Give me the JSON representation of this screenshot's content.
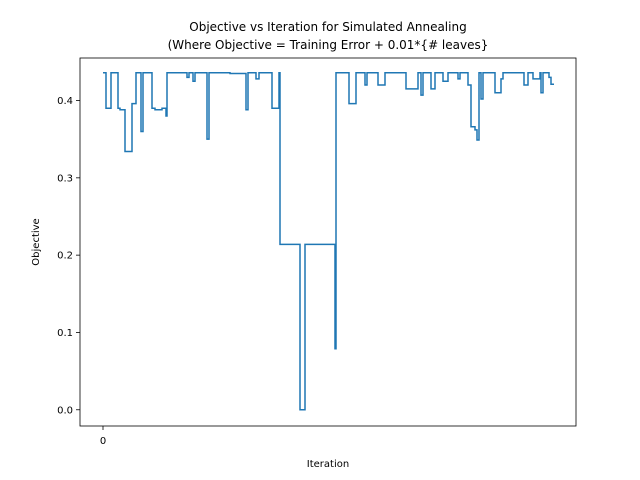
{
  "chart_data": {
    "type": "line",
    "title": [
      "Objective vs Iteration for Simulated Annealing",
      "(Where Objective = Training Error + 0.01*{# leaves}"
    ],
    "x_label": "Iteration",
    "y_label": "Objective",
    "drawstyle": "steps-post",
    "series": [
      {
        "name": "Objective",
        "color": "#1f77b4",
        "x": [
          0,
          3,
          8,
          15,
          17,
          22,
          29,
          33,
          38,
          40,
          49,
          52,
          59,
          63,
          64,
          84,
          86,
          90,
          92,
          104,
          106,
          127,
          143,
          145,
          153,
          156,
          169,
          176,
          177,
          197,
          202,
          232,
          233,
          246,
          253,
          262,
          264,
          275,
          282,
          303,
          315,
          318,
          320,
          328,
          332,
          340,
          345,
          355,
          357,
          365,
          368,
          372,
          374,
          376,
          378,
          380,
          392,
          398,
          400,
          421,
          425,
          430,
          437,
          438,
          440,
          446,
          448,
          451
        ],
        "values": [
          0.436,
          0.39,
          0.436,
          0.39,
          0.388,
          0.334,
          0.396,
          0.436,
          0.36,
          0.436,
          0.39,
          0.388,
          0.39,
          0.38,
          0.436,
          0.43,
          0.436,
          0.425,
          0.436,
          0.35,
          0.436,
          0.435,
          0.388,
          0.436,
          0.428,
          0.436,
          0.39,
          0.436,
          0.214,
          0.0,
          0.214,
          0.079,
          0.436,
          0.396,
          0.436,
          0.42,
          0.436,
          0.42,
          0.436,
          0.415,
          0.436,
          0.407,
          0.436,
          0.415,
          0.436,
          0.425,
          0.436,
          0.428,
          0.436,
          0.42,
          0.366,
          0.362,
          0.349,
          0.436,
          0.402,
          0.436,
          0.41,
          0.428,
          0.436,
          0.42,
          0.436,
          0.428,
          0.436,
          0.41,
          0.436,
          0.43,
          0.421,
          0.421
        ]
      }
    ],
    "xlim": [
      -23,
      473
    ],
    "xticks": [
      0
    ],
    "ylim": [
      -0.021,
      0.455
    ],
    "yticks": [
      {
        "value": 0,
        "label": "0.0"
      },
      0.1,
      0.2,
      0.3,
      0.4
    ]
  }
}
